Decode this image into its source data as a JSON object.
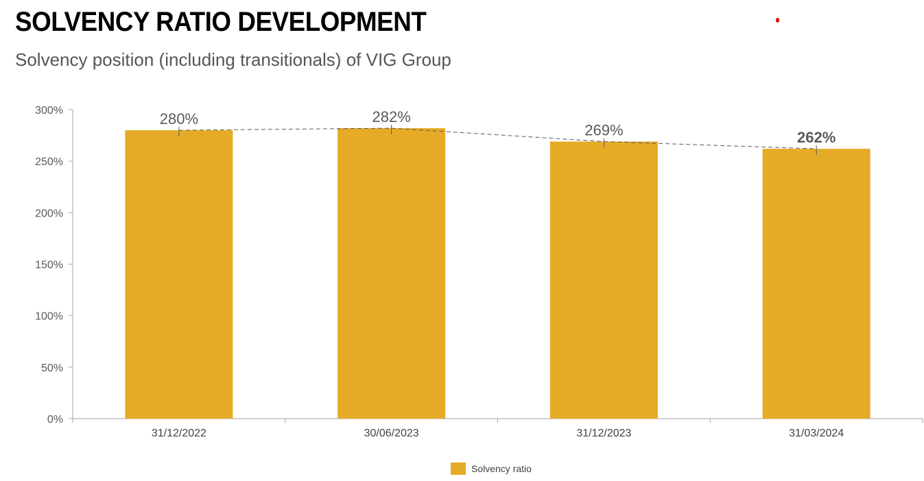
{
  "header": {
    "title": "SOLVENCY RATIO DEVELOPMENT",
    "subtitle": "Solvency position (including transitionals) of VIG Group"
  },
  "colors": {
    "bar": "#E5AB26",
    "axis": "#A6A6A6",
    "trend_line": "#595959",
    "label": "#595959",
    "accent_dot": "#E00000"
  },
  "chart_data": {
    "type": "bar",
    "categories": [
      "31/12/2022",
      "30/06/2023",
      "31/12/2023",
      "31/03/2024"
    ],
    "series": [
      {
        "name": "Solvency ratio",
        "values": [
          280,
          282,
          269,
          262
        ]
      }
    ],
    "data_labels": [
      "280%",
      "282%",
      "269%",
      "262%"
    ],
    "highlight_index": 3,
    "trend_line": "dashed",
    "ylim": [
      0,
      300
    ],
    "yticks": [
      0,
      50,
      100,
      150,
      200,
      250,
      300
    ],
    "ytick_labels": [
      "0%",
      "50%",
      "100%",
      "150%",
      "200%",
      "250%",
      "300%"
    ],
    "grid": false,
    "legend": {
      "position": "bottom-center",
      "entries": [
        "Solvency ratio"
      ]
    }
  }
}
